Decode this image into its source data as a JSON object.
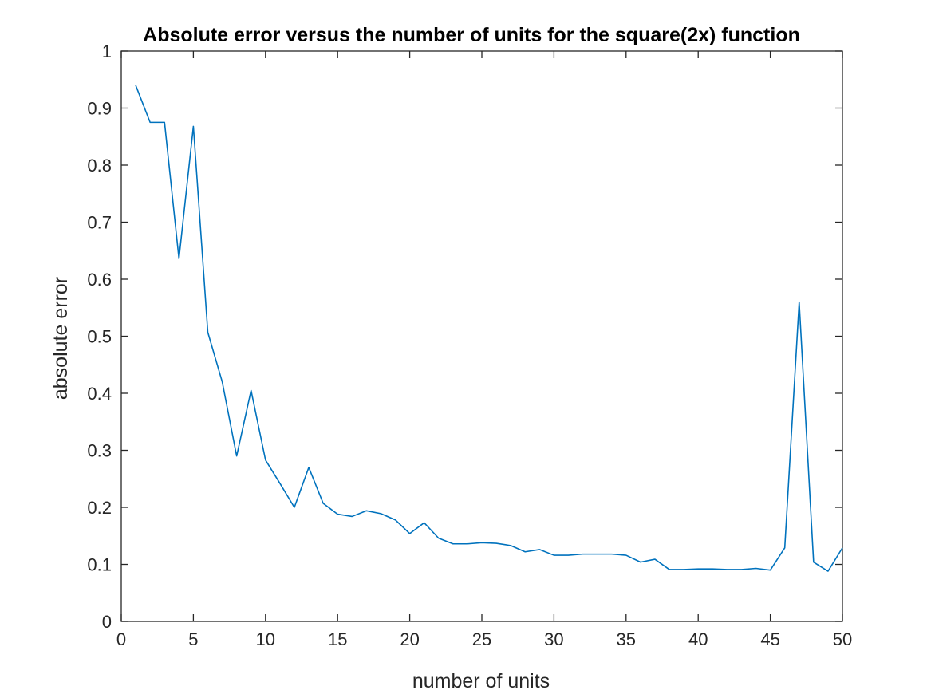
{
  "chart_data": {
    "type": "line",
    "title": "Absolute error versus the number of units for the square(2x) function",
    "xlabel": "number of units",
    "ylabel": "absolute error",
    "xlim": [
      0,
      50
    ],
    "ylim": [
      0,
      1
    ],
    "x_ticks": [
      "0",
      "5",
      "10",
      "15",
      "20",
      "25",
      "30",
      "35",
      "40",
      "45",
      "50"
    ],
    "y_ticks": [
      "0",
      "0.1",
      "0.2",
      "0.3",
      "0.4",
      "0.5",
      "0.6",
      "0.7",
      "0.8",
      "0.9",
      "1"
    ],
    "grid": false,
    "box": true,
    "line_color": "#0072BD",
    "series": [
      {
        "x": [
          1,
          2,
          3,
          4,
          5,
          6,
          7,
          8,
          9,
          10,
          11,
          12,
          13,
          14,
          15,
          16,
          17,
          18,
          19,
          20,
          21,
          22,
          23,
          24,
          25,
          26,
          27,
          28,
          29,
          30,
          31,
          32,
          33,
          34,
          35,
          36,
          37,
          38,
          39,
          40,
          41,
          42,
          43,
          44,
          45,
          46,
          47,
          48,
          49,
          50
        ],
        "values": [
          0.94,
          0.875,
          0.875,
          0.636,
          0.868,
          0.507,
          0.42,
          0.29,
          0.405,
          0.283,
          0.242,
          0.2,
          0.27,
          0.207,
          0.188,
          0.184,
          0.194,
          0.189,
          0.178,
          0.154,
          0.173,
          0.146,
          0.136,
          0.136,
          0.138,
          0.137,
          0.133,
          0.122,
          0.126,
          0.116,
          0.116,
          0.118,
          0.118,
          0.118,
          0.116,
          0.104,
          0.109,
          0.091,
          0.091,
          0.092,
          0.092,
          0.091,
          0.091,
          0.093,
          0.09,
          0.129,
          0.56,
          0.104,
          0.088,
          0.129
        ]
      }
    ]
  }
}
